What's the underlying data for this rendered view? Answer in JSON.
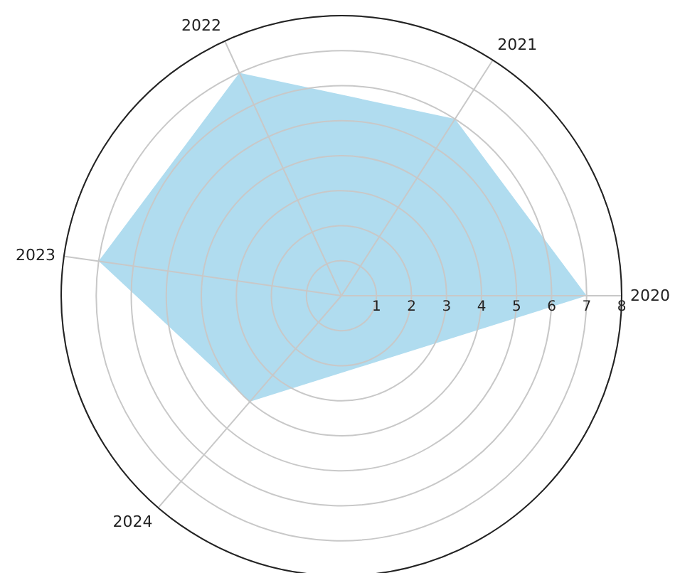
{
  "chart_data": {
    "type": "radar",
    "categories": [
      "2021",
      "2020",
      "2024",
      "2023",
      "2022"
    ],
    "series": [
      {
        "color": "#b0dcef",
        "values": [
          6,
          7,
          4,
          7,
          7
        ]
      }
    ],
    "ylim": [
      0,
      8
    ],
    "yticks": [
      1,
      2,
      3,
      4,
      5,
      6,
      7,
      8
    ],
    "grid": true,
    "marker": "none"
  }
}
